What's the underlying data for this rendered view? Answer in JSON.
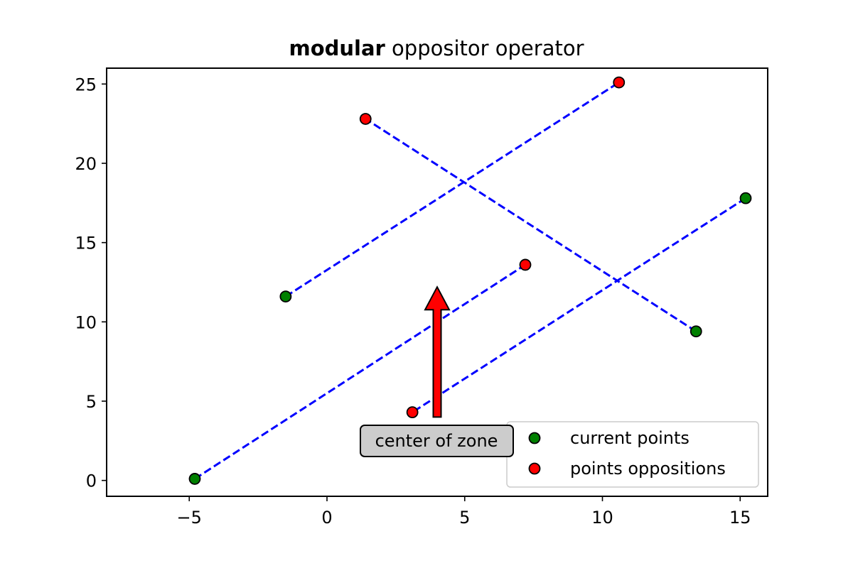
{
  "chart_data": {
    "type": "scatter",
    "title_bold": "modular",
    "title_rest": " oppositor operator",
    "xlim": [
      -8,
      16
    ],
    "ylim": [
      -1,
      26
    ],
    "xticks": [
      -5,
      0,
      5,
      10,
      15
    ],
    "yticks": [
      0,
      5,
      10,
      15,
      20,
      25
    ],
    "xtick_labels": [
      "−5",
      "0",
      "5",
      "10",
      "15"
    ],
    "ytick_labels": [
      "0",
      "5",
      "10",
      "15",
      "20",
      "25"
    ],
    "grid": false,
    "legend_position": "lower-right",
    "series": [
      {
        "name": "current points",
        "color": "#008000",
        "points": [
          [
            -4.8,
            0.1
          ],
          [
            -1.5,
            11.6
          ],
          [
            13.4,
            9.4
          ],
          [
            15.2,
            17.8
          ]
        ]
      },
      {
        "name": "points oppositions",
        "color": "#ff0000",
        "points": [
          [
            3.1,
            4.3
          ],
          [
            10.6,
            25.1
          ],
          [
            1.4,
            22.8
          ],
          [
            7.2,
            13.6
          ]
        ]
      }
    ],
    "connections": [
      {
        "from": [
          -4.8,
          0.1
        ],
        "to": [
          7.2,
          13.6
        ]
      },
      {
        "from": [
          -1.5,
          11.6
        ],
        "to": [
          10.6,
          25.1
        ]
      },
      {
        "from": [
          13.4,
          9.4
        ],
        "to": [
          1.4,
          22.8
        ]
      },
      {
        "from": [
          15.2,
          17.8
        ],
        "to": [
          3.1,
          4.3
        ]
      }
    ],
    "connection_color": "#0000ff",
    "annotation": {
      "text": "center of zone",
      "arrow_from": [
        4.0,
        4.0
      ],
      "arrow_to": [
        4.0,
        12.2
      ],
      "arrow_color": "#ff0000",
      "box_color": "#cccccc"
    }
  }
}
